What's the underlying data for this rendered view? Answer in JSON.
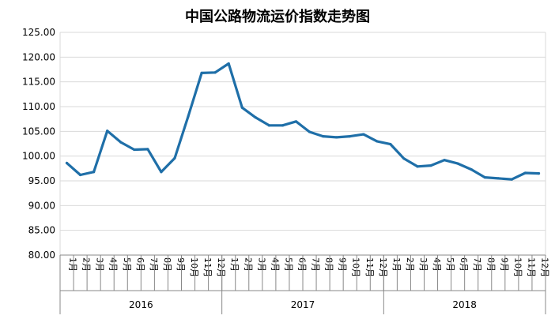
{
  "chart_data": {
    "type": "line",
    "title": "中国公路物流运价指数走势图",
    "xlabel": "",
    "ylabel": "",
    "ylim": [
      80,
      125
    ],
    "yticks": [
      "80.00",
      "85.00",
      "90.00",
      "95.00",
      "100.00",
      "105.00",
      "110.00",
      "115.00",
      "120.00",
      "125.00"
    ],
    "grid": true,
    "legend": "none",
    "line_color": "#1f6fa8",
    "years": [
      {
        "label": "2016",
        "months": [
          "1月",
          "2月",
          "3月",
          "4月",
          "5月",
          "6月",
          "7月",
          "8月",
          "9月",
          "10月",
          "11月",
          "12月"
        ]
      },
      {
        "label": "2017",
        "months": [
          "1月",
          "2月",
          "3月",
          "4月",
          "5月",
          "6月",
          "7月",
          "8月",
          "9月",
          "10月",
          "11月",
          "12月"
        ]
      },
      {
        "label": "2018",
        "months": [
          "1月",
          "2月",
          "3月",
          "4月",
          "5月",
          "6月",
          "7月",
          "8月",
          "9月",
          "10月",
          "11月",
          "12月"
        ]
      }
    ],
    "series": [
      {
        "values": [
          98.6,
          96.2,
          96.8,
          105.1,
          102.8,
          101.3,
          101.4,
          96.8,
          99.6,
          108.0,
          116.8,
          116.9,
          118.7,
          109.8,
          107.8,
          106.2,
          106.2,
          107.0,
          104.9,
          104.0,
          103.8,
          104.0,
          104.4,
          103.0,
          102.4,
          99.5,
          97.9,
          98.1,
          99.2,
          98.5,
          97.3,
          95.7,
          95.5,
          95.3,
          96.6,
          96.5
        ]
      }
    ]
  }
}
